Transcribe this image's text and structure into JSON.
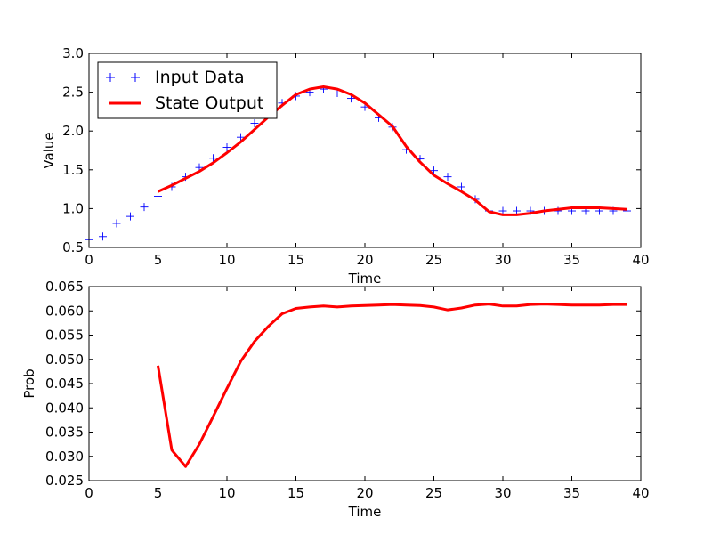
{
  "chart_data": [
    {
      "type": "line",
      "title": "",
      "xlabel": "Time",
      "ylabel": "Value",
      "xlim": [
        0,
        40
      ],
      "ylim": [
        0.5,
        3.0
      ],
      "xticks": [
        "0",
        "5",
        "10",
        "15",
        "20",
        "25",
        "30",
        "35",
        "40"
      ],
      "yticks": [
        "0.5",
        "1.0",
        "1.5",
        "2.0",
        "2.5",
        "3.0"
      ],
      "grid": false,
      "legend": "top-left",
      "series": [
        {
          "name": "Input Data",
          "kind": "scatter",
          "marker": "+",
          "color": "#0000ff",
          "x": [
            0,
            1,
            2,
            3,
            4,
            5,
            6,
            7,
            8,
            9,
            10,
            11,
            12,
            13,
            14,
            15,
            16,
            17,
            18,
            19,
            20,
            21,
            22,
            23,
            24,
            25,
            26,
            27,
            28,
            29,
            30,
            31,
            32,
            33,
            34,
            35,
            36,
            37,
            38,
            39
          ],
          "y": [
            0.6,
            0.64,
            0.81,
            0.9,
            1.02,
            1.16,
            1.28,
            1.41,
            1.53,
            1.65,
            1.79,
            1.92,
            2.1,
            2.26,
            2.36,
            2.45,
            2.5,
            2.54,
            2.49,
            2.42,
            2.31,
            2.17,
            2.05,
            1.76,
            1.64,
            1.49,
            1.41,
            1.28,
            1.12,
            0.97,
            0.97,
            0.97,
            0.97,
            0.97,
            0.97,
            0.97,
            0.97,
            0.97,
            0.97,
            0.97
          ]
        },
        {
          "name": "State Output",
          "kind": "line",
          "color": "#ff0000",
          "x": [
            5,
            6,
            7,
            8,
            9,
            10,
            11,
            12,
            13,
            14,
            15,
            16,
            17,
            18,
            19,
            20,
            21,
            22,
            23,
            24,
            25,
            26,
            27,
            28,
            29,
            30,
            31,
            32,
            33,
            34,
            35,
            36,
            37,
            38,
            39
          ],
          "y": [
            1.22,
            1.3,
            1.39,
            1.48,
            1.59,
            1.72,
            1.86,
            2.02,
            2.18,
            2.33,
            2.47,
            2.54,
            2.57,
            2.54,
            2.47,
            2.36,
            2.21,
            2.06,
            1.8,
            1.6,
            1.43,
            1.32,
            1.22,
            1.11,
            0.96,
            0.92,
            0.92,
            0.94,
            0.97,
            0.99,
            1.01,
            1.01,
            1.01,
            1.0,
            0.99
          ]
        }
      ]
    },
    {
      "type": "line",
      "title": "",
      "xlabel": "Time",
      "ylabel": "Prob",
      "xlim": [
        0,
        40
      ],
      "ylim": [
        0.025,
        0.065
      ],
      "xticks": [
        "0",
        "5",
        "10",
        "15",
        "20",
        "25",
        "30",
        "35",
        "40"
      ],
      "yticks": [
        "0.025",
        "0.030",
        "0.035",
        "0.040",
        "0.045",
        "0.050",
        "0.055",
        "0.060",
        "0.065"
      ],
      "grid": false,
      "series": [
        {
          "kind": "line",
          "color": "#ff0000",
          "x": [
            5,
            6,
            7,
            8,
            9,
            10,
            11,
            12,
            13,
            14,
            15,
            16,
            17,
            18,
            19,
            20,
            21,
            22,
            23,
            24,
            25,
            26,
            27,
            28,
            29,
            30,
            31,
            32,
            33,
            34,
            35,
            36,
            37,
            38,
            39
          ],
          "y": [
            0.0487,
            0.0313,
            0.0279,
            0.0325,
            0.0382,
            0.044,
            0.0496,
            0.0537,
            0.0568,
            0.0594,
            0.0605,
            0.0608,
            0.061,
            0.0608,
            0.061,
            0.0611,
            0.0612,
            0.0613,
            0.0612,
            0.0611,
            0.0608,
            0.0602,
            0.0606,
            0.0612,
            0.0614,
            0.061,
            0.061,
            0.0613,
            0.0614,
            0.0613,
            0.0612,
            0.0612,
            0.0612,
            0.0613,
            0.0613
          ]
        }
      ]
    }
  ]
}
